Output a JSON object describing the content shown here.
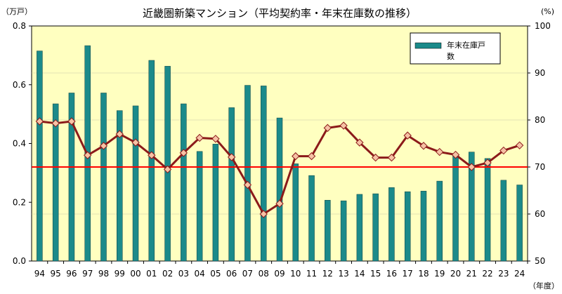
{
  "chart_data": {
    "type": "bar",
    "title": "近畿圏新築マンション（平均契約率・年末在庫数の推移）",
    "left_unit": "（万戸）",
    "right_unit": "(%)",
    "x_unit": "（年度）",
    "legend_label_line1": "年末在庫戸",
    "legend_label_line2": "数",
    "legend_position": "top-right",
    "categories": [
      "94",
      "95",
      "96",
      "97",
      "98",
      "99",
      "00",
      "01",
      "02",
      "03",
      "04",
      "05",
      "06",
      "07",
      "08",
      "09",
      "10",
      "11",
      "12",
      "13",
      "14",
      "15",
      "16",
      "17",
      "18",
      "19",
      "20",
      "21",
      "22",
      "23",
      "24"
    ],
    "left_axis": {
      "min": 0,
      "max": 0.8,
      "ticks": [
        "0.0",
        "0.2",
        "0.4",
        "0.6",
        "0.8"
      ]
    },
    "right_axis": {
      "min": 50,
      "max": 100,
      "ticks": [
        "50",
        "60",
        "70",
        "80",
        "90",
        "100"
      ]
    },
    "series": [
      {
        "name": "年末在庫戸数",
        "type": "bar",
        "axis": "left",
        "color": "#1b8a8a",
        "values": [
          0.715,
          0.535,
          0.572,
          0.733,
          0.572,
          0.512,
          0.528,
          0.683,
          0.663,
          0.535,
          0.373,
          0.398,
          0.522,
          0.598,
          0.596,
          0.487,
          0.331,
          0.291,
          0.207,
          0.205,
          0.227,
          0.229,
          0.25,
          0.236,
          0.238,
          0.272,
          0.359,
          0.371,
          0.349,
          0.275,
          0.259
        ]
      },
      {
        "type": "line",
        "axis": "right",
        "color": "#8b1a1a",
        "marker_fill": "#f6c2a4",
        "values": [
          79.7,
          79.3,
          79.7,
          72.5,
          74.5,
          77.0,
          75.2,
          72.5,
          69.5,
          73.0,
          76.2,
          76.0,
          72.1,
          66.2,
          60.0,
          62.2,
          72.3,
          72.3,
          78.3,
          78.8,
          75.2,
          72.0,
          72.0,
          76.7,
          74.5,
          73.2,
          72.6,
          70.0,
          70.9,
          73.5,
          74.6
        ]
      }
    ],
    "reference_line": {
      "value": 70,
      "axis": "right",
      "color": "#ff0000"
    },
    "plot_background": "#ffffc0",
    "grid": true
  }
}
